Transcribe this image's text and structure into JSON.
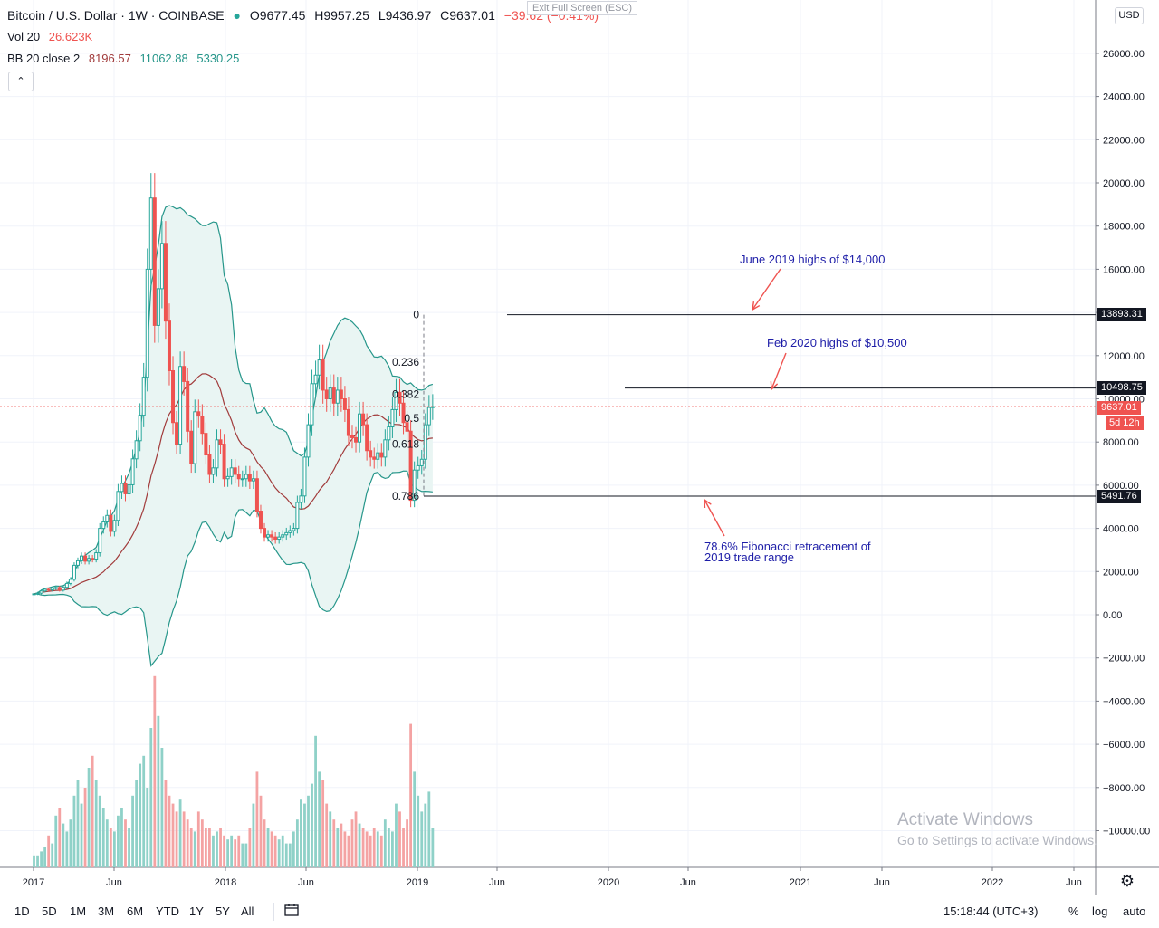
{
  "header": {
    "symbol": "Bitcoin / U.S. Dollar · 1W · COINBASE",
    "open": "O9677.45",
    "high": "H9957.25",
    "low": "L9436.97",
    "close": "C9637.01",
    "change": "−39.62 (−0.41%)",
    "vol_label": "Vol 20",
    "vol_value": "26.623K",
    "bb_label": "BB 20 close 2",
    "bb_basis": "8196.57",
    "bb_upper": "11062.88",
    "bb_lower": "5330.25",
    "exit_fullscreen": "Exit Full Screen (ESC)",
    "collapse_glyph": "⌃"
  },
  "currency": "USD",
  "price_labels": {
    "june_high": "13893.31",
    "feb_high": "10498.75",
    "current": "9637.01",
    "countdown": "5d 12h",
    "fib_low": "5491.76"
  },
  "fib_labels": [
    "0",
    "0.236",
    "0.382",
    "0.5",
    "0.618",
    "0.786"
  ],
  "annotations": {
    "june": "June 2019 highs of $14,000",
    "feb": "Feb 2020 highs of $10,500",
    "fib1": "78.6% Fibonacci retracement of",
    "fib2": "2019 trade range"
  },
  "toolbar": {
    "timeframes": [
      "1D",
      "5D",
      "1M",
      "3M",
      "6M",
      "YTD",
      "1Y",
      "5Y",
      "All"
    ],
    "clock": "15:18:44 (UTC+3)",
    "percent": "%",
    "log": "log",
    "auto": "auto"
  },
  "watermark": {
    "line1": "Activate Windows",
    "line2": "Go to Settings to activate Windows."
  },
  "colors": {
    "up": "#26a69a",
    "down": "#ef5350",
    "vol_up": "#8fd1c8",
    "vol_down": "#f4a3a3",
    "band_line": "#26968a",
    "band_fill": "#e9f5f3",
    "basis": "#a13b3b",
    "annotation": "#1e1ea8",
    "current_label": "#ef5350"
  },
  "chart_data": {
    "type": "candlestick",
    "interval": "1W",
    "x_tick_labels": [
      "2017",
      "Jun",
      "2018",
      "Jun",
      "2019",
      "Jun",
      "2020",
      "Jun",
      "2021",
      "Jun",
      "2022",
      "Jun"
    ],
    "y_tick_labels": [
      "26000.00",
      "24000.00",
      "22000.00",
      "20000.00",
      "18000.00",
      "16000.00",
      "14000.00",
      "12000.00",
      "10000.00",
      "8000.00",
      "6000.00",
      "4000.00",
      "2000.00",
      "0.00",
      "−2000.00",
      "−4000.00",
      "−6000.00",
      "−8000.00",
      "−10000.00"
    ],
    "ylim": [
      -11000,
      28500
    ],
    "series": [
      {
        "name": "Close",
        "values": [
          970,
          1000,
          1100,
          1180,
          1150,
          1230,
          1260,
          1140,
          1270,
          1450,
          1640,
          2290,
          2500,
          2720,
          2480,
          2610,
          2580,
          2870,
          4000,
          4300,
          4600,
          3860,
          4370,
          5710,
          6080,
          5600,
          6020,
          7220,
          8060,
          9240,
          11000,
          16000,
          19300,
          13400,
          15100,
          17200,
          13600,
          11300,
          8900,
          7900,
          11500,
          10800,
          8500,
          7000,
          9400,
          9200,
          8400,
          7400,
          6500,
          6800,
          8100,
          7900,
          6300,
          6400,
          6800,
          6500,
          6300,
          6300,
          6500,
          6200,
          6300,
          4800,
          4000,
          3600,
          3700,
          3600,
          3500,
          3600,
          3700,
          3800,
          3900,
          4000,
          5200,
          5500,
          7300,
          8800,
          10700,
          11100,
          11800,
          10400,
          10000,
          10500,
          9800,
          10400,
          10000,
          9500,
          8300,
          8200,
          8000,
          9300,
          8800,
          7600,
          7300,
          7200,
          7500,
          7300,
          8100,
          8700,
          9500,
          10300,
          9800,
          8900,
          8500,
          5300,
          6700,
          6900,
          7200,
          8800,
          9600,
          9637
        ]
      },
      {
        "name": "Bollinger basis",
        "values": [
          900,
          1200,
          2300,
          4500,
          7200,
          10500,
          8200,
          6900,
          6400,
          4400,
          3700,
          8200,
          10000,
          8300,
          7500,
          8196
        ]
      },
      {
        "name": "Bollinger upper",
        "values": [
          1250,
          1600,
          4900,
          18800,
          16800,
          8800,
          7900,
          7100,
          3600,
          13000,
          12400,
          10500,
          11063
        ]
      },
      {
        "name": "Bollinger lower",
        "values": [
          600,
          400,
          1200,
          -1400,
          4400,
          5800,
          5900,
          1100,
          1500,
          6700,
          6200,
          5330
        ]
      },
      {
        "name": "Vol 20",
        "values": [
          3,
          3,
          4,
          5,
          8,
          6,
          13,
          15,
          11,
          9,
          12,
          18,
          22,
          16,
          20,
          25,
          28,
          22,
          18,
          15,
          12,
          10,
          9,
          13,
          15,
          12,
          10,
          18,
          22,
          26,
          28,
          20,
          35,
          48,
          38,
          30,
          22,
          18,
          16,
          14,
          17,
          14,
          12,
          10,
          9,
          14,
          12,
          10,
          10,
          8,
          9,
          10,
          8,
          7,
          8,
          7,
          8,
          6,
          6,
          10,
          16,
          24,
          18,
          12,
          10,
          9,
          8,
          7,
          8,
          6,
          6,
          9,
          12,
          17,
          16,
          18,
          21,
          33,
          24,
          22,
          16,
          14,
          12,
          10,
          11,
          9,
          8,
          12,
          14,
          11,
          10,
          9,
          8,
          10,
          9,
          8,
          12,
          10,
          9,
          16,
          14,
          10,
          12,
          36,
          24,
          18,
          14,
          16,
          19,
          10
        ]
      }
    ],
    "levels": [
      13893.31,
      10498.75,
      5491.76
    ],
    "fibonacci": [
      {
        "ratio": "0",
        "price": 13893.31
      },
      {
        "ratio": "0.236",
        "price": 11700
      },
      {
        "ratio": "0.382",
        "price": 10200
      },
      {
        "ratio": "0.5",
        "price": 9100
      },
      {
        "ratio": "0.618",
        "price": 7900
      },
      {
        "ratio": "0.786",
        "price": 5491.76
      }
    ]
  }
}
